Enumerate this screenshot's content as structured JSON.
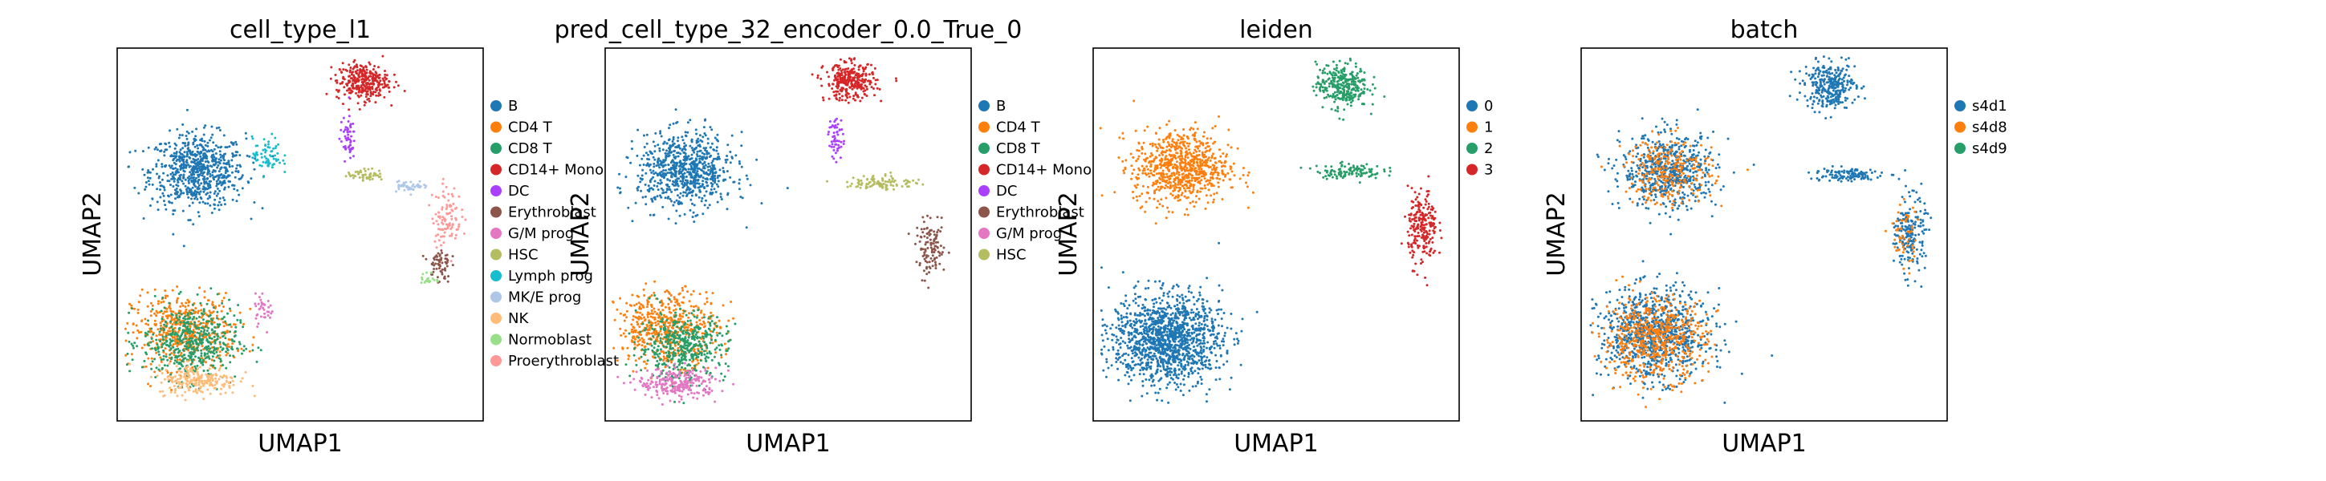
{
  "chart_data": [
    {
      "type": "scatter",
      "title": "cell_type_l1",
      "xlabel": "UMAP1",
      "ylabel": "UMAP2",
      "grid": false,
      "legend": "outside-right",
      "legend_entries": [
        {
          "label": "B",
          "color": "#1f77b4"
        },
        {
          "label": "CD4 T",
          "color": "#ff7f0e"
        },
        {
          "label": "CD8 T",
          "color": "#279e68"
        },
        {
          "label": "CD14+ Mono",
          "color": "#d62728"
        },
        {
          "label": "DC",
          "color": "#aa40fc"
        },
        {
          "label": "Erythroblast",
          "color": "#8c564b"
        },
        {
          "label": "G/M prog",
          "color": "#e377c2"
        },
        {
          "label": "HSC",
          "color": "#b5bd61"
        },
        {
          "label": "Lymph prog",
          "color": "#17becf"
        },
        {
          "label": "MK/E prog",
          "color": "#aec7e8"
        },
        {
          "label": "NK",
          "color": "#ffbb78"
        },
        {
          "label": "Normoblast",
          "color": "#98df8a"
        },
        {
          "label": "Proerythroblast",
          "color": "#ff9896"
        }
      ],
      "clusters": [
        {
          "series": "B",
          "center": [
            0.22,
            0.67
          ],
          "spread": [
            0.13,
            0.1
          ],
          "n": 1600
        },
        {
          "series": "CD4 T",
          "center": [
            0.18,
            0.24
          ],
          "spread": [
            0.14,
            0.1
          ],
          "n": 1100
        },
        {
          "series": "CD8 T",
          "center": [
            0.2,
            0.21
          ],
          "spread": [
            0.13,
            0.1
          ],
          "n": 1100
        },
        {
          "series": "NK",
          "center": [
            0.22,
            0.11
          ],
          "spread": [
            0.11,
            0.04
          ],
          "n": 500
        },
        {
          "series": "CD14+ Mono",
          "center": [
            0.67,
            0.91
          ],
          "spread": [
            0.07,
            0.05
          ],
          "n": 700
        },
        {
          "series": "DC",
          "center": [
            0.63,
            0.76
          ],
          "spread": [
            0.02,
            0.06
          ],
          "n": 120
        },
        {
          "series": "Lymph prog",
          "center": [
            0.41,
            0.71
          ],
          "spread": [
            0.04,
            0.05
          ],
          "n": 150
        },
        {
          "series": "HSC",
          "center": [
            0.68,
            0.66
          ],
          "spread": [
            0.05,
            0.015
          ],
          "n": 120
        },
        {
          "series": "MK/E prog",
          "center": [
            0.8,
            0.63
          ],
          "spread": [
            0.05,
            0.015
          ],
          "n": 100
        },
        {
          "series": "Proerythroblast",
          "center": [
            0.9,
            0.55
          ],
          "spread": [
            0.04,
            0.08
          ],
          "n": 220
        },
        {
          "series": "Erythroblast",
          "center": [
            0.88,
            0.42
          ],
          "spread": [
            0.03,
            0.05
          ],
          "n": 140
        },
        {
          "series": "Normoblast",
          "center": [
            0.85,
            0.38
          ],
          "spread": [
            0.02,
            0.02
          ],
          "n": 40
        },
        {
          "series": "G/M prog",
          "center": [
            0.4,
            0.3
          ],
          "spread": [
            0.03,
            0.04
          ],
          "n": 80
        }
      ]
    },
    {
      "type": "scatter",
      "title": "pred_cell_type_32_encoder_0.0_True_0",
      "xlabel": "UMAP1",
      "ylabel": "UMAP2",
      "grid": false,
      "legend": "outside-right",
      "legend_entries": [
        {
          "label": "B",
          "color": "#1f77b4"
        },
        {
          "label": "CD4 T",
          "color": "#ff7f0e"
        },
        {
          "label": "CD8 T",
          "color": "#279e68"
        },
        {
          "label": "CD14+ Mono",
          "color": "#d62728"
        },
        {
          "label": "DC",
          "color": "#aa40fc"
        },
        {
          "label": "Erythroblast",
          "color": "#8c564b"
        },
        {
          "label": "G/M prog",
          "color": "#e377c2"
        },
        {
          "label": "HSC",
          "color": "#b5bd61"
        }
      ],
      "clusters": [
        {
          "series": "B",
          "center": [
            0.22,
            0.67
          ],
          "spread": [
            0.13,
            0.1
          ],
          "n": 1700
        },
        {
          "series": "CD4 T",
          "center": [
            0.17,
            0.25
          ],
          "spread": [
            0.14,
            0.1
          ],
          "n": 1200
        },
        {
          "series": "CD8 T",
          "center": [
            0.21,
            0.2
          ],
          "spread": [
            0.12,
            0.09
          ],
          "n": 1000
        },
        {
          "series": "G/M prog",
          "center": [
            0.2,
            0.1
          ],
          "spread": [
            0.11,
            0.04
          ],
          "n": 550
        },
        {
          "series": "CD14+ Mono",
          "center": [
            0.67,
            0.91
          ],
          "spread": [
            0.07,
            0.05
          ],
          "n": 700
        },
        {
          "series": "DC",
          "center": [
            0.63,
            0.76
          ],
          "spread": [
            0.02,
            0.06
          ],
          "n": 120
        },
        {
          "series": "HSC",
          "center": [
            0.76,
            0.64
          ],
          "spread": [
            0.1,
            0.02
          ],
          "n": 220
        },
        {
          "series": "Erythroblast",
          "center": [
            0.89,
            0.46
          ],
          "spread": [
            0.04,
            0.07
          ],
          "n": 260
        }
      ]
    },
    {
      "type": "scatter",
      "title": "leiden",
      "xlabel": "UMAP1",
      "ylabel": "UMAP2",
      "grid": false,
      "legend": "outside-right",
      "legend_entries": [
        {
          "label": "0",
          "color": "#1f77b4"
        },
        {
          "label": "1",
          "color": "#ff7f0e"
        },
        {
          "label": "2",
          "color": "#279e68"
        },
        {
          "label": "3",
          "color": "#d62728"
        }
      ],
      "clusters": [
        {
          "series": "0",
          "center": [
            0.2,
            0.22
          ],
          "spread": [
            0.15,
            0.12
          ],
          "n": 3000
        },
        {
          "series": "1",
          "center": [
            0.24,
            0.68
          ],
          "spread": [
            0.13,
            0.1
          ],
          "n": 1700
        },
        {
          "series": "2",
          "center": [
            0.68,
            0.9
          ],
          "spread": [
            0.07,
            0.06
          ],
          "n": 700
        },
        {
          "series": "2",
          "center": [
            0.7,
            0.67
          ],
          "spread": [
            0.09,
            0.02
          ],
          "n": 250
        },
        {
          "series": "3",
          "center": [
            0.9,
            0.52
          ],
          "spread": [
            0.04,
            0.1
          ],
          "n": 500
        }
      ]
    },
    {
      "type": "scatter",
      "title": "batch",
      "xlabel": "UMAP1",
      "ylabel": "UMAP2",
      "grid": false,
      "legend": "outside-right",
      "legend_entries": [
        {
          "label": "s4d1",
          "color": "#1f77b4"
        },
        {
          "label": "s4d8",
          "color": "#ff7f0e"
        },
        {
          "label": "s4d9",
          "color": "#279e68"
        }
      ],
      "clusters": [
        {
          "series": "s4d1",
          "center": [
            0.2,
            0.23
          ],
          "spread": [
            0.15,
            0.12
          ],
          "n": 2000
        },
        {
          "series": "s4d8",
          "center": [
            0.2,
            0.22
          ],
          "spread": [
            0.14,
            0.11
          ],
          "n": 1300
        },
        {
          "series": "s4d1",
          "center": [
            0.24,
            0.67
          ],
          "spread": [
            0.13,
            0.1
          ],
          "n": 1300
        },
        {
          "series": "s4d8",
          "center": [
            0.24,
            0.67
          ],
          "spread": [
            0.12,
            0.09
          ],
          "n": 600
        },
        {
          "series": "s4d1",
          "center": [
            0.68,
            0.9
          ],
          "spread": [
            0.07,
            0.06
          ],
          "n": 700
        },
        {
          "series": "s4d1",
          "center": [
            0.72,
            0.66
          ],
          "spread": [
            0.1,
            0.02
          ],
          "n": 250
        },
        {
          "series": "s4d1",
          "center": [
            0.9,
            0.5
          ],
          "spread": [
            0.04,
            0.1
          ],
          "n": 450
        },
        {
          "series": "s4d8",
          "center": [
            0.88,
            0.5
          ],
          "spread": [
            0.04,
            0.09
          ],
          "n": 120
        }
      ]
    }
  ]
}
